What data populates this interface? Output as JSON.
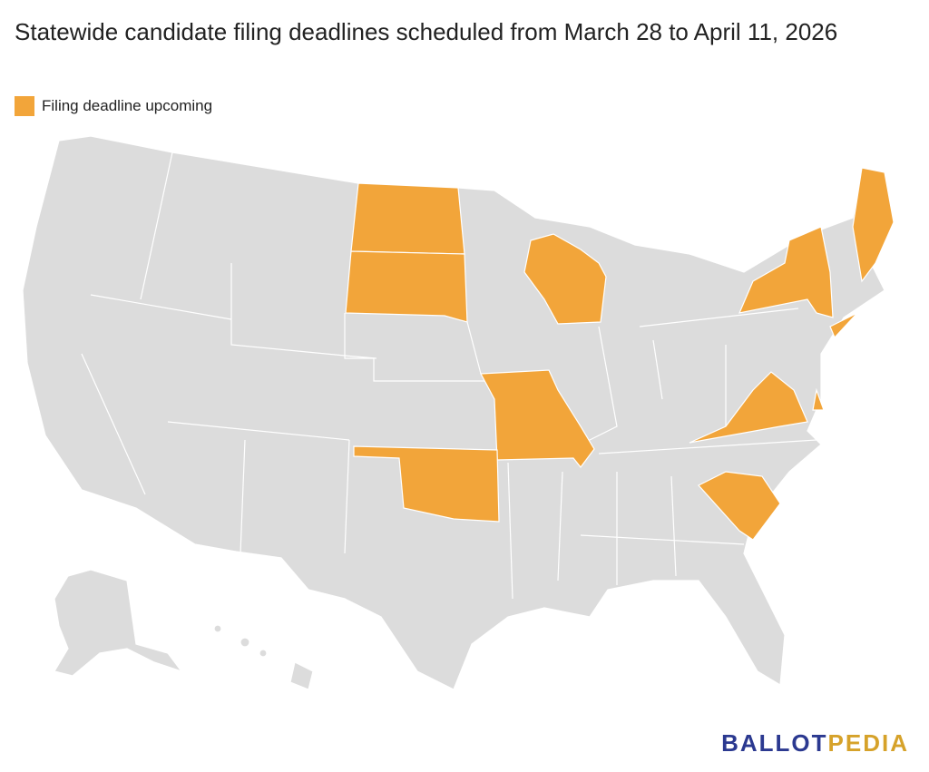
{
  "header": {
    "title": "Statewide candidate filing deadlines scheduled from March 28 to April 11, 2026"
  },
  "legend": {
    "label": "Filing deadline upcoming",
    "color": "#f2a53a"
  },
  "logo": {
    "part1": "BALLOT",
    "part2": "PEDIA"
  }
}
